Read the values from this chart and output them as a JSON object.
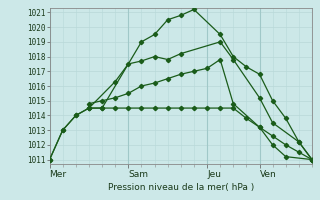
{
  "bg_color": "#cce8e8",
  "grid_color_major": "#a0c8c8",
  "grid_color_minor": "#b8d8d8",
  "line_color": "#1a5c1a",
  "ylim": [
    1011,
    1021
  ],
  "yticks": [
    1011,
    1012,
    1013,
    1014,
    1015,
    1016,
    1017,
    1018,
    1019,
    1020,
    1021
  ],
  "xlabel": "Pression niveau de la mer( hPa )",
  "day_labels": [
    "Mer",
    "Sam",
    "Jeu",
    "Ven"
  ],
  "day_positions": [
    0,
    36,
    72,
    96
  ],
  "xlim": [
    0,
    120
  ],
  "series1_x": [
    0,
    6,
    12,
    18,
    24,
    42,
    48,
    54,
    60,
    66,
    78,
    84,
    90,
    96,
    102,
    108,
    114,
    120
  ],
  "series1_y": [
    1011.0,
    1013.0,
    1014.0,
    1014.5,
    1014.5,
    1019.0,
    1019.5,
    1020.5,
    1020.8,
    1021.2,
    1019.5,
    1018.0,
    1017.3,
    1016.8,
    1015.0,
    1013.8,
    1012.2,
    1011.0
  ],
  "series2_x": [
    0,
    6,
    12,
    18,
    30,
    36,
    42,
    48,
    54,
    60,
    78,
    84,
    96,
    102,
    114,
    120
  ],
  "series2_y": [
    1011.0,
    1013.0,
    1014.0,
    1014.5,
    1016.3,
    1017.5,
    1017.7,
    1018.0,
    1017.8,
    1018.2,
    1019.0,
    1017.8,
    1015.2,
    1013.5,
    1012.2,
    1011.0
  ],
  "series3_x": [
    18,
    24,
    30,
    36,
    42,
    48,
    54,
    60,
    66,
    72,
    78,
    84,
    96,
    102,
    108,
    120
  ],
  "series3_y": [
    1014.8,
    1015.0,
    1015.2,
    1015.5,
    1016.0,
    1016.2,
    1016.5,
    1016.8,
    1017.0,
    1017.2,
    1017.8,
    1014.8,
    1013.2,
    1012.0,
    1011.2,
    1011.0
  ],
  "series4_x": [
    18,
    24,
    30,
    36,
    42,
    48,
    54,
    60,
    66,
    72,
    78,
    84,
    90,
    96,
    102,
    108,
    114,
    120
  ],
  "series4_y": [
    1014.5,
    1014.5,
    1014.5,
    1014.5,
    1014.5,
    1014.5,
    1014.5,
    1014.5,
    1014.5,
    1014.5,
    1014.5,
    1014.5,
    1013.8,
    1013.2,
    1012.6,
    1012.0,
    1011.5,
    1011.0
  ]
}
